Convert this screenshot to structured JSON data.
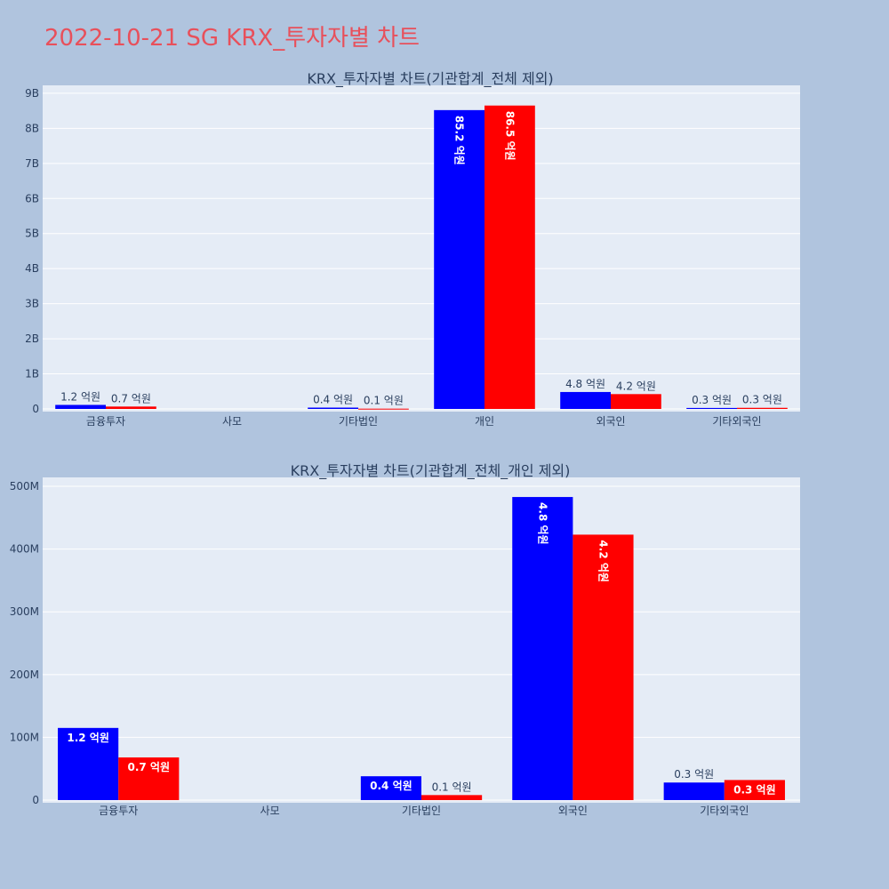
{
  "title": "2022-10-21 SG KRX_투자자별 차트",
  "colors": {
    "series1": "#0000ff",
    "series2": "#ff0000"
  },
  "chart_data": [
    {
      "type": "bar",
      "title": "KRX_투자자별 차트(기관합계_전체 제외)",
      "categories": [
        "금융투자",
        "사모",
        "기타법인",
        "개인",
        "외국인",
        "기타외국인"
      ],
      "series": [
        {
          "name": "series1",
          "values": [
            115000000,
            0,
            38000000,
            8520000000,
            483000000,
            28000000
          ],
          "labels": [
            "1.2 억원",
            "",
            "0.4 억원",
            "85.2 억원",
            "4.8 억원",
            "0.3 억원"
          ]
        },
        {
          "name": "series2",
          "values": [
            68000000,
            0,
            8000000,
            8650000000,
            423000000,
            32000000
          ],
          "labels": [
            "0.7 억원",
            "",
            "0.1 억원",
            "86.5 억원",
            "4.2 억원",
            "0.3 억원"
          ]
        }
      ],
      "ylim": [
        0,
        9150000000
      ],
      "yticks": [
        0,
        1000000000,
        2000000000,
        3000000000,
        4000000000,
        5000000000,
        6000000000,
        7000000000,
        8000000000,
        9000000000
      ],
      "yticklabels": [
        "0",
        "1B",
        "2B",
        "3B",
        "4B",
        "5B",
        "6B",
        "7B",
        "8B",
        "9B"
      ]
    },
    {
      "type": "bar",
      "title": "KRX_투자자별 차트(기관합계_전체_개인 제외)",
      "categories": [
        "금융투자",
        "사모",
        "기타법인",
        "외국인",
        "기타외국인"
      ],
      "series": [
        {
          "name": "series1",
          "values": [
            115000000,
            0,
            38000000,
            483000000,
            28000000
          ],
          "labels": [
            "1.2 억원",
            "",
            "0.4 억원",
            "4.8 억원",
            "0.3 억원"
          ]
        },
        {
          "name": "series2",
          "values": [
            68000000,
            0,
            8000000,
            423000000,
            32000000
          ],
          "labels": [
            "0.7 억원",
            "",
            "0.1 억원",
            "4.2 억원",
            "0.3 억원"
          ]
        }
      ],
      "ylim": [
        0,
        510000000
      ],
      "yticks": [
        0,
        100000000,
        200000000,
        300000000,
        400000000,
        500000000
      ],
      "yticklabels": [
        "0",
        "100M",
        "200M",
        "300M",
        "400M",
        "500M"
      ]
    }
  ]
}
